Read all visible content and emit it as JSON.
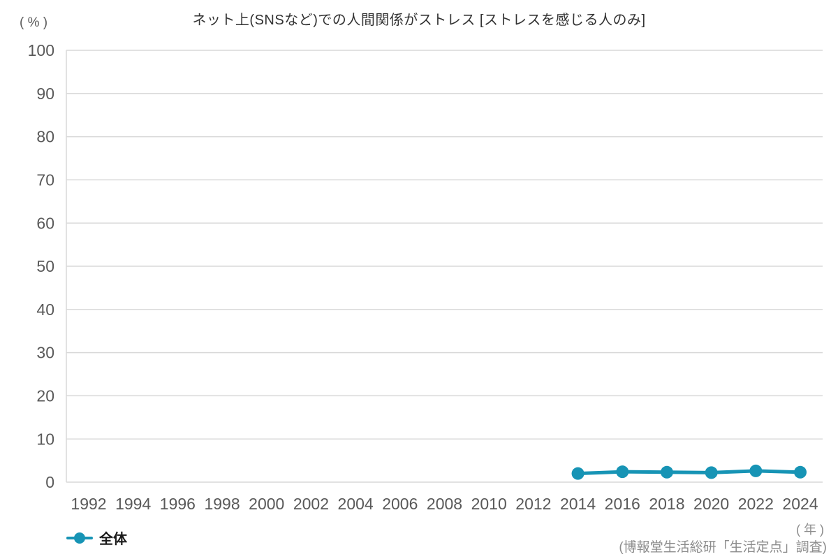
{
  "page": {
    "title": "ネット上(SNSなど)での人間関係がストレス [ストレスを感じる人のみ]",
    "y_unit_label": "( % )",
    "x_unit_label": "( 年 )",
    "source_note": "(博報堂生活総研「生活定点」調査)"
  },
  "legend": {
    "items": [
      {
        "label": "全体",
        "color": "#1794b5"
      }
    ]
  },
  "colors": {
    "series_teal": "#1794b5",
    "gridline": "#d9d9d9",
    "tick_text": "#595959",
    "title_text": "#333333",
    "note_text": "#8c8c8c"
  },
  "chart_data": {
    "type": "line",
    "title": "ネット上(SNSなど)での人間関係がストレス [ストレスを感じる人のみ]",
    "xlabel": "( 年 )",
    "ylabel": "( % )",
    "x_ticks": [
      "1992",
      "1994",
      "1996",
      "1998",
      "2000",
      "2002",
      "2004",
      "2006",
      "2008",
      "2010",
      "2012",
      "2014",
      "2016",
      "2018",
      "2020",
      "2022",
      "2024"
    ],
    "y_ticks": [
      0,
      10,
      20,
      30,
      40,
      50,
      60,
      70,
      80,
      90,
      100
    ],
    "ylim": [
      0,
      100
    ],
    "grid": true,
    "legend_position": "bottom-left",
    "series": [
      {
        "name": "全体",
        "color": "#1794b5",
        "x": [
          2014,
          2016,
          2018,
          2020,
          2022,
          2024
        ],
        "values": [
          2.0,
          2.4,
          2.3,
          2.2,
          2.6,
          2.3
        ]
      }
    ],
    "source": "(博報堂生活総研「生活定点」調査)"
  }
}
